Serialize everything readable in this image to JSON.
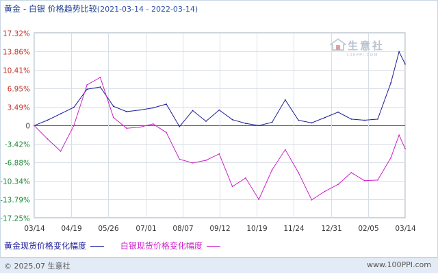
{
  "title": {
    "main": "黄金 - 白银 价格趋势比较",
    "range": "(2021-03-14 - 2022-03-14)"
  },
  "watermark": {
    "text": "生意社",
    "url": "100PPI.COM"
  },
  "legend": [
    {
      "label": "黄金现货价格变化幅度",
      "color": "#1a1a9a"
    },
    {
      "label": "白银现货价格变化幅度",
      "color": "#cc1fcc"
    }
  ],
  "footer": {
    "copyright": "© 2025.07 生意社",
    "site": "www.100PPI.com"
  },
  "chart_data": {
    "type": "line",
    "x_ticks": [
      "03/14",
      "04/19",
      "05/26",
      "07/01",
      "08/07",
      "09/12",
      "10/19",
      "11/24",
      "12/31",
      "02/05",
      "03/14"
    ],
    "y_ticks": [
      "17.32%",
      "13.86%",
      "10.41%",
      "6.95%",
      "3.49%",
      "0",
      "-3.42%",
      "-6.88%",
      "-10.34%",
      "-13.79%",
      "-17.25%"
    ],
    "y_tick_values": [
      17.32,
      13.86,
      10.41,
      6.95,
      3.49,
      0,
      -3.42,
      -6.88,
      -10.34,
      -13.79,
      -17.25
    ],
    "ylim": [
      -17.25,
      17.32
    ],
    "grid": true,
    "x": [
      "2021-03-14",
      "2021-03-27",
      "2021-04-09",
      "2021-04-22",
      "2021-05-05",
      "2021-05-18",
      "2021-05-31",
      "2021-06-13",
      "2021-06-26",
      "2021-07-09",
      "2021-07-22",
      "2021-08-04",
      "2021-08-17",
      "2021-08-30",
      "2021-09-12",
      "2021-09-25",
      "2021-10-08",
      "2021-10-21",
      "2021-11-03",
      "2021-11-16",
      "2021-11-29",
      "2021-12-12",
      "2021-12-25",
      "2022-01-07",
      "2022-01-20",
      "2022-02-02",
      "2022-02-15",
      "2022-02-28",
      "2022-03-08",
      "2022-03-14"
    ],
    "series": [
      {
        "name": "黄金现货价格变化幅度",
        "color": "#1a1a9a",
        "values": [
          0.0,
          1.0,
          2.2,
          3.4,
          6.8,
          7.2,
          3.6,
          2.6,
          2.9,
          3.3,
          4.0,
          -0.2,
          2.8,
          0.8,
          2.9,
          1.1,
          0.4,
          0.0,
          0.6,
          4.8,
          1.0,
          0.5,
          1.5,
          2.5,
          1.2,
          1.0,
          1.2,
          8.0,
          13.8,
          11.5
        ]
      },
      {
        "name": "白银现货价格变化幅度",
        "color": "#cc1fcc",
        "values": [
          0.0,
          -2.5,
          -4.8,
          0.0,
          7.6,
          9.0,
          1.5,
          -0.5,
          -0.3,
          0.3,
          -1.3,
          -6.3,
          -7.0,
          -6.5,
          -5.3,
          -11.4,
          -9.8,
          -13.8,
          -8.3,
          -4.5,
          -8.8,
          -13.9,
          -12.3,
          -11.0,
          -8.8,
          -10.3,
          -10.2,
          -6.0,
          -1.8,
          -4.3
        ]
      }
    ]
  }
}
